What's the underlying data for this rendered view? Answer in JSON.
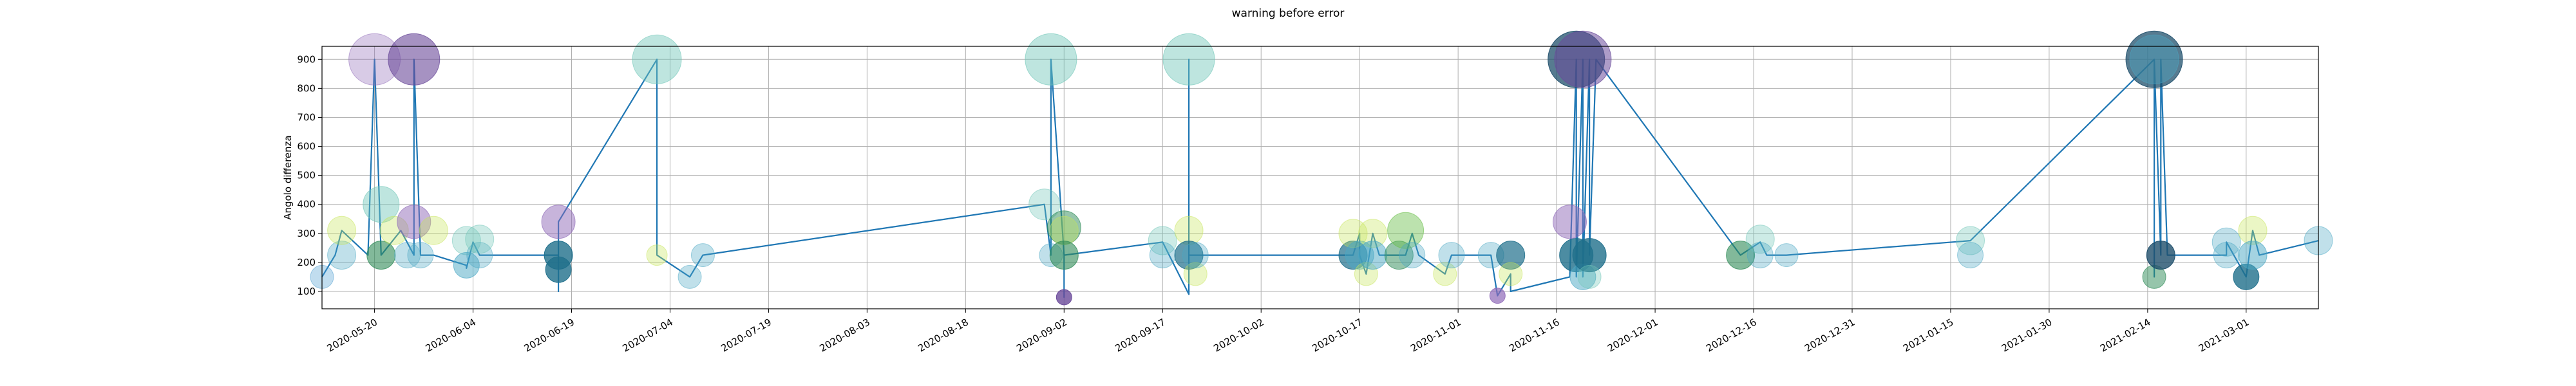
{
  "chart_data": {
    "type": "scatter",
    "title": "warning before error",
    "xlabel": "",
    "ylabel": "Angolo differenza",
    "x_range": [
      "2020-05-12",
      "2021-03-12"
    ],
    "ylim": [
      40,
      945
    ],
    "grid": true,
    "x_ticks": [
      "2020-05-20",
      "2020-06-04",
      "2020-06-19",
      "2020-07-04",
      "2020-07-19",
      "2020-08-03",
      "2020-08-18",
      "2020-09-02",
      "2020-09-17",
      "2020-10-02",
      "2020-10-17",
      "2020-11-01",
      "2020-11-16",
      "2020-12-01",
      "2020-12-16",
      "2020-12-31",
      "2021-01-15",
      "2021-01-30",
      "2021-02-14",
      "2021-03-01"
    ],
    "y_ticks": [
      100,
      200,
      300,
      400,
      500,
      600,
      700,
      800,
      900
    ],
    "line": {
      "color": "#1f77b4",
      "points": [
        [
          "2020-05-12",
          150
        ],
        [
          "2020-05-14",
          225
        ],
        [
          "2020-05-15",
          310
        ],
        [
          "2020-05-19",
          225
        ],
        [
          "2020-05-20",
          900
        ],
        [
          "2020-05-21",
          225
        ],
        [
          "2020-05-24",
          310
        ],
        [
          "2020-05-26",
          225
        ],
        [
          "2020-05-26",
          900
        ],
        [
          "2020-05-27",
          225
        ],
        [
          "2020-05-29",
          225
        ],
        [
          "2020-06-03",
          190
        ],
        [
          "2020-06-03",
          180
        ],
        [
          "2020-06-04",
          270
        ],
        [
          "2020-06-05",
          225
        ],
        [
          "2020-06-17",
          225
        ],
        [
          "2020-06-17",
          100
        ],
        [
          "2020-06-17",
          175
        ],
        [
          "2020-06-17",
          340
        ],
        [
          "2020-07-02",
          900
        ],
        [
          "2020-07-02",
          225
        ],
        [
          "2020-07-07",
          150
        ],
        [
          "2020-07-09",
          225
        ],
        [
          "2020-08-30",
          400
        ],
        [
          "2020-08-31",
          225
        ],
        [
          "2020-08-31",
          900
        ],
        [
          "2020-09-02",
          225
        ],
        [
          "2020-09-02",
          80
        ],
        [
          "2020-09-02",
          225
        ],
        [
          "2020-09-17",
          270
        ],
        [
          "2020-09-18",
          225
        ],
        [
          "2020-09-21",
          90
        ],
        [
          "2020-09-21",
          900
        ],
        [
          "2020-09-21",
          225
        ],
        [
          "2020-10-16",
          225
        ],
        [
          "2020-10-17",
          300
        ],
        [
          "2020-10-17",
          225
        ],
        [
          "2020-10-18",
          160
        ],
        [
          "2020-10-19",
          300
        ],
        [
          "2020-10-20",
          225
        ],
        [
          "2020-10-22",
          225
        ],
        [
          "2020-10-24",
          225
        ],
        [
          "2020-10-25",
          300
        ],
        [
          "2020-10-26",
          225
        ],
        [
          "2020-10-30",
          160
        ],
        [
          "2020-10-31",
          225
        ],
        [
          "2020-11-06",
          225
        ],
        [
          "2020-11-07",
          85
        ],
        [
          "2020-11-09",
          160
        ],
        [
          "2020-11-09",
          100
        ],
        [
          "2020-11-18",
          150
        ],
        [
          "2020-11-19",
          900
        ],
        [
          "2020-11-19",
          150
        ],
        [
          "2020-11-20",
          900
        ],
        [
          "2020-11-20",
          150
        ],
        [
          "2020-11-21",
          900
        ],
        [
          "2020-11-21",
          225
        ],
        [
          "2020-11-22",
          900
        ],
        [
          "2020-12-14",
          225
        ],
        [
          "2020-12-17",
          270
        ],
        [
          "2020-12-18",
          225
        ],
        [
          "2020-12-21",
          225
        ],
        [
          "2021-01-18",
          275
        ],
        [
          "2021-02-15",
          900
        ],
        [
          "2021-02-15",
          150
        ],
        [
          "2021-02-15",
          900
        ],
        [
          "2021-02-16",
          225
        ],
        [
          "2021-02-16",
          900
        ],
        [
          "2021-02-17",
          225
        ],
        [
          "2021-02-26",
          225
        ],
        [
          "2021-02-26",
          270
        ],
        [
          "2021-03-01",
          150
        ],
        [
          "2021-03-02",
          310
        ],
        [
          "2021-03-03",
          225
        ],
        [
          "2021-03-12",
          275
        ]
      ]
    },
    "markers": [
      {
        "x": "2020-05-12",
        "y": 150,
        "size": 18,
        "color": "#4e9ed0",
        "alpha": 0.35
      },
      {
        "x": "2020-05-15",
        "y": 225,
        "size": 22,
        "color": "#4aa7c4",
        "alpha": 0.35
      },
      {
        "x": "2020-05-15",
        "y": 310,
        "size": 22,
        "color": "#c7e65a",
        "alpha": 0.35
      },
      {
        "x": "2020-05-20",
        "y": 900,
        "size": 40,
        "color": "#8f6ab8",
        "alpha": 0.35
      },
      {
        "x": "2020-05-21",
        "y": 225,
        "size": 22,
        "color": "#2e8b57",
        "alpha": 0.6
      },
      {
        "x": "2020-05-21",
        "y": 400,
        "size": 28,
        "color": "#6fc6b8",
        "alpha": 0.45
      },
      {
        "x": "2020-05-23",
        "y": 310,
        "size": 22,
        "color": "#c7e65a",
        "alpha": 0.35
      },
      {
        "x": "2020-05-25",
        "y": 225,
        "size": 20,
        "color": "#4aa7c4",
        "alpha": 0.35
      },
      {
        "x": "2020-05-26",
        "y": 900,
        "size": 40,
        "color": "#6a4a9a",
        "alpha": 0.6
      },
      {
        "x": "2020-05-26",
        "y": 340,
        "size": 26,
        "color": "#8f6ab8",
        "alpha": 0.5
      },
      {
        "x": "2020-05-27",
        "y": 225,
        "size": 20,
        "color": "#4aa7c4",
        "alpha": 0.35
      },
      {
        "x": "2020-05-29",
        "y": 310,
        "size": 22,
        "color": "#c7e65a",
        "alpha": 0.35
      },
      {
        "x": "2020-06-03",
        "y": 275,
        "size": 22,
        "color": "#6fc6b8",
        "alpha": 0.35
      },
      {
        "x": "2020-06-03",
        "y": 190,
        "size": 20,
        "color": "#4aa7c4",
        "alpha": 0.5
      },
      {
        "x": "2020-06-05",
        "y": 225,
        "size": 20,
        "color": "#4aa7c4",
        "alpha": 0.35
      },
      {
        "x": "2020-06-05",
        "y": 280,
        "size": 22,
        "color": "#6fc6b8",
        "alpha": 0.35
      },
      {
        "x": "2020-06-17",
        "y": 225,
        "size": 22,
        "color": "#1f6f8b",
        "alpha": 0.8
      },
      {
        "x": "2020-06-17",
        "y": 175,
        "size": 20,
        "color": "#1f6f8b",
        "alpha": 0.8
      },
      {
        "x": "2020-06-17",
        "y": 340,
        "size": 26,
        "color": "#8f6ab8",
        "alpha": 0.5
      },
      {
        "x": "2020-07-02",
        "y": 900,
        "size": 38,
        "color": "#6fc6b8",
        "alpha": 0.45
      },
      {
        "x": "2020-07-02",
        "y": 225,
        "size": 16,
        "color": "#c7e65a",
        "alpha": 0.35
      },
      {
        "x": "2020-07-07",
        "y": 150,
        "size": 18,
        "color": "#4aa7c4",
        "alpha": 0.35
      },
      {
        "x": "2020-07-09",
        "y": 225,
        "size": 18,
        "color": "#4aa7c4",
        "alpha": 0.35
      },
      {
        "x": "2020-08-30",
        "y": 400,
        "size": 24,
        "color": "#6fc6b8",
        "alpha": 0.35
      },
      {
        "x": "2020-08-31",
        "y": 225,
        "size": 18,
        "color": "#4aa7c4",
        "alpha": 0.35
      },
      {
        "x": "2020-08-31",
        "y": 900,
        "size": 40,
        "color": "#6fc6b8",
        "alpha": 0.45
      },
      {
        "x": "2020-09-02",
        "y": 320,
        "size": 26,
        "color": "#2e8b57",
        "alpha": 0.5
      },
      {
        "x": "2020-09-02",
        "y": 310,
        "size": 22,
        "color": "#c7e65a",
        "alpha": 0.35
      },
      {
        "x": "2020-09-02",
        "y": 225,
        "size": 22,
        "color": "#2e8b57",
        "alpha": 0.6
      },
      {
        "x": "2020-09-02",
        "y": 80,
        "size": 12,
        "color": "#6a4a9a",
        "alpha": 0.8
      },
      {
        "x": "2020-09-17",
        "y": 275,
        "size": 22,
        "color": "#6fc6b8",
        "alpha": 0.35
      },
      {
        "x": "2020-09-17",
        "y": 225,
        "size": 20,
        "color": "#4aa7c4",
        "alpha": 0.35
      },
      {
        "x": "2020-09-21",
        "y": 310,
        "size": 22,
        "color": "#c7e65a",
        "alpha": 0.35
      },
      {
        "x": "2020-09-21",
        "y": 900,
        "size": 40,
        "color": "#6fc6b8",
        "alpha": 0.45
      },
      {
        "x": "2020-09-21",
        "y": 225,
        "size": 22,
        "color": "#1f6f8b",
        "alpha": 0.7
      },
      {
        "x": "2020-09-22",
        "y": 160,
        "size": 18,
        "color": "#c7e65a",
        "alpha": 0.35
      },
      {
        "x": "2020-09-22",
        "y": 225,
        "size": 20,
        "color": "#4aa7c4",
        "alpha": 0.35
      },
      {
        "x": "2020-10-16",
        "y": 225,
        "size": 22,
        "color": "#1f6f8b",
        "alpha": 0.7
      },
      {
        "x": "2020-10-16",
        "y": 300,
        "size": 22,
        "color": "#c7e65a",
        "alpha": 0.35
      },
      {
        "x": "2020-10-17",
        "y": 225,
        "size": 22,
        "color": "#4aa7c4",
        "alpha": 0.5
      },
      {
        "x": "2020-10-18",
        "y": 160,
        "size": 18,
        "color": "#c7e65a",
        "alpha": 0.35
      },
      {
        "x": "2020-10-19",
        "y": 300,
        "size": 22,
        "color": "#c7e65a",
        "alpha": 0.35
      },
      {
        "x": "2020-10-19",
        "y": 225,
        "size": 22,
        "color": "#4aa7c4",
        "alpha": 0.5
      },
      {
        "x": "2020-10-23",
        "y": 225,
        "size": 22,
        "color": "#2e8b57",
        "alpha": 0.5
      },
      {
        "x": "2020-10-24",
        "y": 310,
        "size": 28,
        "color": "#6abf4b",
        "alpha": 0.45
      },
      {
        "x": "2020-10-25",
        "y": 225,
        "size": 20,
        "color": "#4aa7c4",
        "alpha": 0.35
      },
      {
        "x": "2020-10-30",
        "y": 160,
        "size": 18,
        "color": "#c7e65a",
        "alpha": 0.35
      },
      {
        "x": "2020-10-31",
        "y": 225,
        "size": 20,
        "color": "#4aa7c4",
        "alpha": 0.35
      },
      {
        "x": "2020-11-06",
        "y": 225,
        "size": 20,
        "color": "#4aa7c4",
        "alpha": 0.35
      },
      {
        "x": "2020-11-07",
        "y": 85,
        "size": 12,
        "color": "#8f6ab8",
        "alpha": 0.7
      },
      {
        "x": "2020-11-09",
        "y": 225,
        "size": 22,
        "color": "#1f6f8b",
        "alpha": 0.7
      },
      {
        "x": "2020-11-09",
        "y": 160,
        "size": 18,
        "color": "#c7e65a",
        "alpha": 0.35
      },
      {
        "x": "2020-11-18",
        "y": 340,
        "size": 26,
        "color": "#8f6ab8",
        "alpha": 0.5
      },
      {
        "x": "2020-11-19",
        "y": 900,
        "size": 44,
        "color": "#1f4f6b",
        "alpha": 0.75
      },
      {
        "x": "2020-11-20",
        "y": 900,
        "size": 44,
        "color": "#6a4a9a",
        "alpha": 0.55
      },
      {
        "x": "2020-11-19",
        "y": 225,
        "size": 26,
        "color": "#1f6f8b",
        "alpha": 0.8
      },
      {
        "x": "2020-11-20",
        "y": 150,
        "size": 20,
        "color": "#4aa7c4",
        "alpha": 0.5
      },
      {
        "x": "2020-11-21",
        "y": 225,
        "size": 26,
        "color": "#1f6f8b",
        "alpha": 0.8
      },
      {
        "x": "2020-11-21",
        "y": 150,
        "size": 18,
        "color": "#6fc6b8",
        "alpha": 0.35
      },
      {
        "x": "2020-12-14",
        "y": 225,
        "size": 22,
        "color": "#2e8b57",
        "alpha": 0.6
      },
      {
        "x": "2020-12-17",
        "y": 280,
        "size": 22,
        "color": "#6fc6b8",
        "alpha": 0.35
      },
      {
        "x": "2020-12-17",
        "y": 225,
        "size": 20,
        "color": "#4aa7c4",
        "alpha": 0.35
      },
      {
        "x": "2020-12-21",
        "y": 225,
        "size": 18,
        "color": "#4aa7c4",
        "alpha": 0.35
      },
      {
        "x": "2021-01-18",
        "y": 275,
        "size": 22,
        "color": "#6fc6b8",
        "alpha": 0.35
      },
      {
        "x": "2021-01-18",
        "y": 225,
        "size": 20,
        "color": "#4aa7c4",
        "alpha": 0.35
      },
      {
        "x": "2021-02-15",
        "y": 900,
        "size": 44,
        "color": "#1f4f6b",
        "alpha": 0.75
      },
      {
        "x": "2021-02-15",
        "y": 900,
        "size": 38,
        "color": "#4aa7c4",
        "alpha": 0.4
      },
      {
        "x": "2021-02-15",
        "y": 150,
        "size": 18,
        "color": "#2e8b57",
        "alpha": 0.5
      },
      {
        "x": "2021-02-16",
        "y": 225,
        "size": 22,
        "color": "#1f4f6b",
        "alpha": 0.8
      },
      {
        "x": "2021-02-26",
        "y": 270,
        "size": 22,
        "color": "#4aa7c4",
        "alpha": 0.35
      },
      {
        "x": "2021-02-26",
        "y": 225,
        "size": 20,
        "color": "#4aa7c4",
        "alpha": 0.35
      },
      {
        "x": "2021-03-01",
        "y": 150,
        "size": 20,
        "color": "#1f6f8b",
        "alpha": 0.8
      },
      {
        "x": "2021-03-02",
        "y": 310,
        "size": 22,
        "color": "#c7e65a",
        "alpha": 0.35
      },
      {
        "x": "2021-03-02",
        "y": 225,
        "size": 22,
        "color": "#4aa7c4",
        "alpha": 0.5
      },
      {
        "x": "2021-03-12",
        "y": 275,
        "size": 22,
        "color": "#4aa7c4",
        "alpha": 0.35
      }
    ]
  }
}
